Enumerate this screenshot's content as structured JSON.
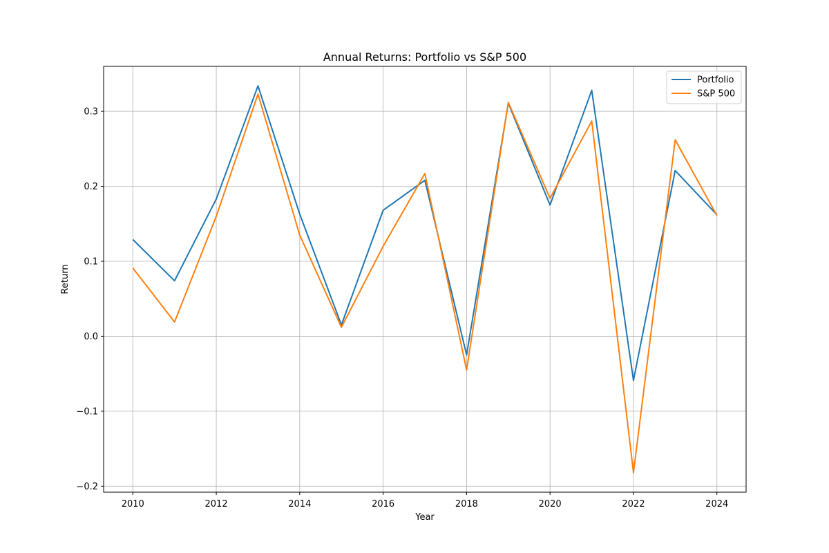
{
  "chart_data": {
    "type": "line",
    "title": "Annual Returns: Portfolio vs S&P 500",
    "xlabel": "Year",
    "ylabel": "Return",
    "x": [
      2010,
      2011,
      2012,
      2013,
      2014,
      2015,
      2016,
      2017,
      2018,
      2019,
      2020,
      2021,
      2022,
      2023,
      2024
    ],
    "xlim": [
      2009.3,
      2024.7
    ],
    "ylim": [
      -0.208,
      0.36
    ],
    "xticks": [
      2010,
      2012,
      2014,
      2016,
      2018,
      2020,
      2022,
      2024
    ],
    "xtick_labels": [
      "2010",
      "2012",
      "2014",
      "2016",
      "2018",
      "2020",
      "2022",
      "2024"
    ],
    "yticks": [
      -0.2,
      -0.1,
      0.0,
      0.1,
      0.2,
      0.3
    ],
    "ytick_labels": [
      "−0.2",
      "−0.1",
      "0.0",
      "0.1",
      "0.2",
      "0.3"
    ],
    "grid": true,
    "legend_position": "top-right",
    "series": [
      {
        "name": "Portfolio",
        "color": "#1f77b4",
        "values": [
          0.129,
          0.074,
          0.183,
          0.334,
          0.163,
          0.015,
          0.168,
          0.208,
          -0.025,
          0.311,
          0.175,
          0.328,
          -0.059,
          0.221,
          0.162
        ]
      },
      {
        "name": "S&P 500",
        "color": "#ff7f0e",
        "values": [
          0.091,
          0.019,
          0.16,
          0.323,
          0.135,
          0.012,
          0.12,
          0.217,
          -0.045,
          0.312,
          0.184,
          0.287,
          -0.182,
          0.262,
          0.161
        ]
      }
    ]
  }
}
